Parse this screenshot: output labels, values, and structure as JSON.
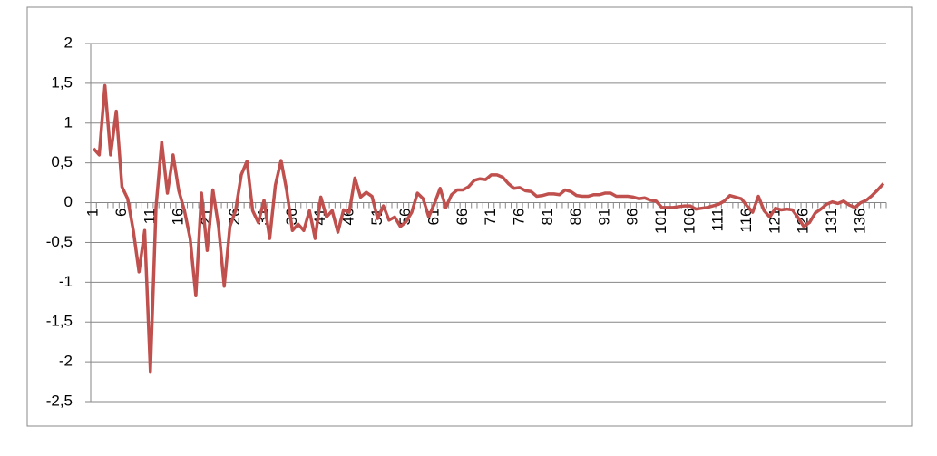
{
  "chart_data": {
    "type": "line",
    "categories": [
      "1",
      null,
      null,
      null,
      null,
      "6",
      null,
      null,
      null,
      null,
      "11",
      null,
      null,
      null,
      null,
      "16",
      null,
      null,
      null,
      null,
      "21",
      null,
      null,
      null,
      null,
      "26",
      null,
      null,
      null,
      null,
      "31",
      null,
      null,
      null,
      null,
      "36",
      null,
      null,
      null,
      null,
      "41",
      null,
      null,
      null,
      null,
      "46",
      null,
      null,
      null,
      null,
      "51",
      null,
      null,
      null,
      null,
      "56",
      null,
      null,
      null,
      null,
      "61",
      null,
      null,
      null,
      null,
      "66",
      null,
      null,
      null,
      null,
      "71",
      null,
      null,
      null,
      null,
      "76",
      null,
      null,
      null,
      null,
      "81",
      null,
      null,
      null,
      null,
      "86",
      null,
      null,
      null,
      null,
      "91",
      null,
      null,
      null,
      null,
      "96",
      null,
      null,
      null,
      null,
      "101",
      null,
      null,
      null,
      null,
      "106",
      null,
      null,
      null,
      null,
      "111",
      null,
      null,
      null,
      null,
      "116",
      null,
      null,
      null,
      null,
      "121",
      null,
      null,
      null,
      null,
      "126",
      null,
      null,
      null,
      null,
      "131",
      null,
      null,
      null,
      null,
      "136",
      null,
      null,
      null,
      null
    ],
    "series": [
      {
        "color": "#c0504d",
        "values": [
          0.68,
          0.6,
          1.47,
          0.6,
          1.15,
          0.2,
          0.05,
          -0.35,
          -0.87,
          -0.35,
          -2.12,
          -0.05,
          0.76,
          0.12,
          0.6,
          0.15,
          -0.1,
          -0.45,
          -1.17,
          0.12,
          -0.6,
          0.16,
          -0.3,
          -1.05,
          -0.3,
          -0.1,
          0.35,
          0.52,
          -0.1,
          -0.25,
          0.03,
          -0.45,
          0.22,
          0.53,
          0.15,
          -0.35,
          -0.27,
          -0.35,
          -0.1,
          -0.45,
          0.07,
          -0.18,
          -0.1,
          -0.37,
          -0.09,
          -0.12,
          0.31,
          0.07,
          0.13,
          0.08,
          -0.2,
          -0.04,
          -0.22,
          -0.18,
          -0.3,
          -0.24,
          -0.12,
          0.12,
          0.05,
          -0.18,
          -0.01,
          0.18,
          -0.06,
          0.1,
          0.16,
          0.16,
          0.2,
          0.28,
          0.3,
          0.29,
          0.35,
          0.35,
          0.32,
          0.24,
          0.18,
          0.19,
          0.15,
          0.14,
          0.08,
          0.09,
          0.11,
          0.11,
          0.1,
          0.16,
          0.14,
          0.09,
          0.08,
          0.08,
          0.1,
          0.1,
          0.12,
          0.12,
          0.08,
          0.08,
          0.08,
          0.07,
          0.05,
          0.06,
          0.03,
          0.02,
          -0.06,
          -0.06,
          -0.06,
          -0.05,
          -0.04,
          -0.04,
          -0.08,
          -0.07,
          -0.06,
          -0.04,
          -0.02,
          0.02,
          0.09,
          0.07,
          0.05,
          -0.04,
          -0.12,
          0.08,
          -0.1,
          -0.18,
          -0.07,
          -0.09,
          -0.08,
          -0.09,
          -0.19,
          -0.3,
          -0.25,
          -0.13,
          -0.08,
          -0.02,
          0.01,
          -0.01,
          0.02,
          -0.03,
          -0.06,
          0,
          0.03,
          0.09,
          0.16,
          0.24
        ]
      }
    ],
    "ylim": [
      -2.5,
      2
    ],
    "yticks": [
      {
        "value": -2.5,
        "label": "-2,5"
      },
      -2,
      {
        "value": -1.5,
        "label": "-1,5"
      },
      -1,
      {
        "value": -0.5,
        "label": "-0,5"
      },
      0,
      {
        "value": 0.5,
        "label": "0,5"
      },
      1,
      {
        "value": 1.5,
        "label": "1,5"
      },
      2
    ],
    "grid": true
  }
}
